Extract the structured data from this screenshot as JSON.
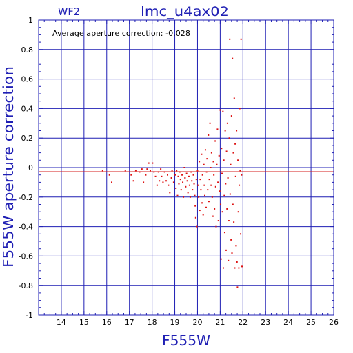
{
  "chart_data": {
    "type": "scatter",
    "panel_label": "WF2",
    "title": "lmc_u4ax02",
    "annotation": "Average aperture correction: -0.028",
    "xlabel": "F555W",
    "ylabel": "F555W aperture correction",
    "xlim": [
      13,
      26
    ],
    "ylim": [
      -1,
      1
    ],
    "x_ticks": [
      14,
      15,
      16,
      17,
      18,
      19,
      20,
      21,
      22,
      23,
      24,
      25,
      26
    ],
    "y_ticks": [
      -1,
      -0.8,
      -0.6,
      -0.4,
      -0.2,
      0,
      0.2,
      0.4,
      0.6,
      0.8,
      1
    ],
    "y_tick_labels": [
      "-1",
      "-0.8",
      "-0.6",
      "-0.4",
      "-0.2",
      "0",
      "0.2",
      "0.4",
      "0.6",
      "0.8",
      "1"
    ],
    "grid": true,
    "reference_lines": [
      {
        "y": 0,
        "color": "#1f1fb4"
      },
      {
        "y": -0.028,
        "color": "#d41c1c"
      }
    ],
    "colors": {
      "axes": "#1f1fb4",
      "points": "#dd1111",
      "average_line": "#d41c1c"
    },
    "series": [
      {
        "points": [
          [
            15.82,
            -0.02
          ],
          [
            16.12,
            -0.05
          ],
          [
            16.22,
            -0.1
          ],
          [
            16.82,
            -0.02
          ],
          [
            17.08,
            -0.05
          ],
          [
            17.18,
            -0.09
          ],
          [
            17.28,
            -0.02
          ],
          [
            17.45,
            -0.03
          ],
          [
            17.55,
            -0.01
          ],
          [
            17.62,
            -0.1
          ],
          [
            17.72,
            -0.05
          ],
          [
            17.78,
            -0.01
          ],
          [
            17.85,
            0.03
          ],
          [
            17.92,
            -0.02
          ],
          [
            18.02,
            0.03
          ],
          [
            18.08,
            -0.03
          ],
          [
            18.15,
            -0.06
          ],
          [
            18.22,
            -0.12
          ],
          [
            18.28,
            -0.03
          ],
          [
            18.32,
            -0.09
          ],
          [
            18.38,
            -0.01
          ],
          [
            18.42,
            -0.06
          ],
          [
            18.48,
            -0.1
          ],
          [
            18.55,
            -0.03
          ],
          [
            18.62,
            -0.09
          ],
          [
            18.68,
            -0.05
          ],
          [
            18.72,
            -0.12
          ],
          [
            18.78,
            -0.17
          ],
          [
            18.85,
            -0.07
          ],
          [
            18.88,
            -0.02
          ],
          [
            18.95,
            -0.1
          ],
          [
            19.02,
            -0.05
          ],
          [
            19.05,
            -0.14
          ],
          [
            19.08,
            -0.02
          ],
          [
            19.12,
            -0.19
          ],
          [
            19.15,
            -0.06
          ],
          [
            19.18,
            -0.11
          ],
          [
            19.22,
            -0.03
          ],
          [
            19.25,
            -0.08
          ],
          [
            19.28,
            -0.15
          ],
          [
            19.32,
            -0.05
          ],
          [
            19.35,
            -0.1
          ],
          [
            19.38,
            -0.2
          ],
          [
            19.42,
            0.0
          ],
          [
            19.45,
            -0.07
          ],
          [
            19.48,
            -0.13
          ],
          [
            19.52,
            -0.04
          ],
          [
            19.55,
            -0.09
          ],
          [
            19.58,
            -0.17
          ],
          [
            19.62,
            -0.06
          ],
          [
            19.65,
            -0.12
          ],
          [
            19.68,
            -0.2
          ],
          [
            19.72,
            -0.03
          ],
          [
            19.75,
            -0.09
          ],
          [
            19.78,
            -0.15
          ],
          [
            19.82,
            -0.05
          ],
          [
            19.85,
            -0.11
          ],
          [
            19.88,
            -0.19
          ],
          [
            19.9,
            -0.26
          ],
          [
            19.92,
            -0.34
          ],
          [
            19.95,
            -0.08
          ],
          [
            19.97,
            -0.4
          ],
          [
            20.0,
            -0.02
          ],
          [
            20.02,
            -0.12
          ],
          [
            20.05,
            -0.2
          ],
          [
            20.08,
            0.04
          ],
          [
            20.1,
            -0.29
          ],
          [
            20.12,
            -0.08
          ],
          [
            20.15,
            -0.15
          ],
          [
            20.18,
            0.09
          ],
          [
            20.2,
            -0.24
          ],
          [
            20.22,
            -0.05
          ],
          [
            20.25,
            -0.32
          ],
          [
            20.28,
            0.02
          ],
          [
            20.3,
            -0.12
          ],
          [
            20.32,
            -0.19
          ],
          [
            20.35,
            0.12
          ],
          [
            20.38,
            -0.27
          ],
          [
            20.4,
            -0.03
          ],
          [
            20.42,
            0.06
          ],
          [
            20.45,
            -0.15
          ],
          [
            20.48,
            0.22
          ],
          [
            20.5,
            -0.23
          ],
          [
            20.52,
            -0.08
          ],
          [
            20.55,
            0.3
          ],
          [
            20.58,
            0.0
          ],
          [
            20.6,
            -0.12
          ],
          [
            20.62,
            0.1
          ],
          [
            20.65,
            -0.2
          ],
          [
            20.68,
            -0.33
          ],
          [
            20.7,
            0.04
          ],
          [
            20.72,
            -0.05
          ],
          [
            20.75,
            -0.28
          ],
          [
            20.78,
            0.18
          ],
          [
            20.8,
            -0.13
          ],
          [
            20.82,
            -0.4
          ],
          [
            20.85,
            0.02
          ],
          [
            20.88,
            0.26
          ],
          [
            20.9,
            -0.1
          ],
          [
            20.92,
            -0.36
          ],
          [
            20.95,
            0.08
          ],
          [
            20.98,
            -0.16
          ],
          [
            21.0,
            0.39
          ],
          [
            21.02,
            -0.25
          ],
          [
            21.04,
            -0.62
          ],
          [
            21.06,
            0.13
          ],
          [
            21.08,
            -0.04
          ],
          [
            21.1,
            -0.3
          ],
          [
            21.12,
            0.38
          ],
          [
            21.14,
            -0.68
          ],
          [
            21.16,
            0.05
          ],
          [
            21.18,
            -0.19
          ],
          [
            21.2,
            -0.44
          ],
          [
            21.22,
            0.25
          ],
          [
            21.24,
            -0.11
          ],
          [
            21.26,
            -0.56
          ],
          [
            21.28,
            0.11
          ],
          [
            21.3,
            -0.28
          ],
          [
            21.32,
            0.3
          ],
          [
            21.34,
            -0.07
          ],
          [
            21.36,
            -0.63
          ],
          [
            21.38,
            -0.36
          ],
          [
            21.4,
            0.2
          ],
          [
            21.42,
            0.87
          ],
          [
            21.44,
            -0.18
          ],
          [
            21.46,
            0.02
          ],
          [
            21.48,
            -0.49
          ],
          [
            21.5,
            0.35
          ],
          [
            21.52,
            -0.58
          ],
          [
            21.54,
            0.74
          ],
          [
            21.56,
            -0.25
          ],
          [
            21.58,
            0.1
          ],
          [
            21.6,
            -0.37
          ],
          [
            21.62,
            0.47
          ],
          [
            21.64,
            -0.68
          ],
          [
            21.66,
            0.16
          ],
          [
            21.68,
            -0.06
          ],
          [
            21.7,
            -0.53
          ],
          [
            21.72,
            0.25
          ],
          [
            21.74,
            -0.64
          ],
          [
            21.76,
            -0.81
          ],
          [
            21.78,
            0.05
          ],
          [
            21.8,
            -0.3
          ],
          [
            21.82,
            -0.68
          ],
          [
            21.84,
            -0.12
          ],
          [
            21.86,
            0.4
          ],
          [
            21.88,
            -0.02
          ],
          [
            21.9,
            -0.45
          ],
          [
            21.92,
            0.87
          ],
          [
            21.94,
            -0.05
          ],
          [
            21.96,
            -0.67
          ]
        ]
      }
    ]
  }
}
